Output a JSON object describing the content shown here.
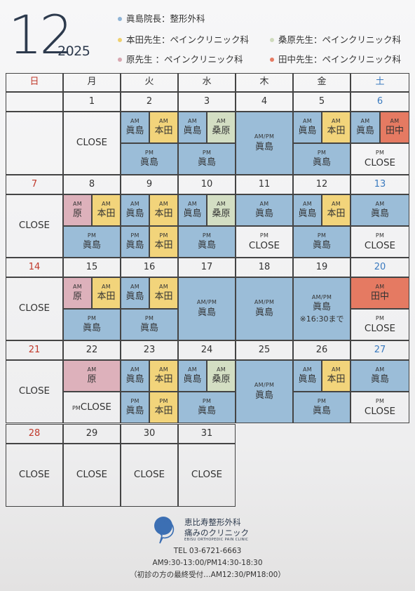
{
  "header": {
    "month": "12",
    "year": "2025"
  },
  "legend": [
    {
      "label": "眞島院長：整形外科",
      "color": "#8fb4d6"
    },
    {
      "label": "本田先生：ペインクリニック科",
      "color": "#efd06f"
    },
    {
      "label": "桑原先生：ペインクリニック科",
      "color": "#cfdbbd"
    },
    {
      "label": "原先生 ：ペインクリニック科",
      "color": "#d8a7b1"
    },
    {
      "label": "田中先生：ペインクリニック科",
      "color": "#e57a62"
    }
  ],
  "colors": {
    "majima": "#9bbdd8",
    "honda": "#f2d47b",
    "kuwahara": "#d3dec3",
    "hara": "#ddb1bb",
    "tanaka": "#e57a62",
    "sunday": "#c0392b",
    "saturday": "#3a7abf",
    "grid": "#444444"
  },
  "weekdays": [
    {
      "label": "日",
      "color": "#c0392b"
    },
    {
      "label": "月",
      "color": "#333333"
    },
    {
      "label": "火",
      "color": "#333333"
    },
    {
      "label": "水",
      "color": "#333333"
    },
    {
      "label": "木",
      "color": "#333333"
    },
    {
      "label": "金",
      "color": "#333333"
    },
    {
      "label": "土",
      "color": "#3a7abf"
    }
  ],
  "weeks": [
    {
      "dates": [
        "",
        "1",
        "2",
        "3",
        "4",
        "5",
        "6"
      ],
      "days": [
        {
          "kind": "empty"
        },
        {
          "kind": "full",
          "text": "CLOSE"
        },
        {
          "kind": "split",
          "am": [
            {
              "doc": "眞島",
              "c": "majima"
            },
            {
              "doc": "本田",
              "c": "honda"
            }
          ],
          "pm": [
            {
              "doc": "眞島",
              "c": "majima"
            }
          ]
        },
        {
          "kind": "split",
          "am": [
            {
              "doc": "眞島",
              "c": "majima"
            },
            {
              "doc": "桑原",
              "c": "kuwahara"
            }
          ],
          "pm": [
            {
              "doc": "眞島",
              "c": "majima"
            }
          ]
        },
        {
          "kind": "full",
          "tag": "AM/PM",
          "doc": "眞島",
          "c": "majima"
        },
        {
          "kind": "split",
          "am": [
            {
              "doc": "眞島",
              "c": "majima"
            },
            {
              "doc": "本田",
              "c": "honda"
            }
          ],
          "pm": [
            {
              "doc": "眞島",
              "c": "majima"
            }
          ]
        },
        {
          "kind": "split",
          "am": [
            {
              "doc": "眞島",
              "c": "majima"
            },
            {
              "doc": "田中",
              "c": "tanaka"
            }
          ],
          "pm": [
            {
              "doc": "CLOSE",
              "c": ""
            }
          ]
        }
      ]
    },
    {
      "dates": [
        "7",
        "8",
        "9",
        "10",
        "11",
        "12",
        "13"
      ],
      "days": [
        {
          "kind": "full",
          "text": "CLOSE"
        },
        {
          "kind": "split",
          "am": [
            {
              "doc": "原",
              "c": "hara"
            },
            {
              "doc": "本田",
              "c": "honda"
            }
          ],
          "pm": [
            {
              "doc": "眞島",
              "c": "majima"
            }
          ]
        },
        {
          "kind": "split",
          "am": [
            {
              "doc": "眞島",
              "c": "majima"
            },
            {
              "doc": "本田",
              "c": "honda"
            }
          ],
          "pm": [
            {
              "doc": "眞島",
              "c": "majima"
            },
            {
              "doc": "本田",
              "c": "honda"
            }
          ]
        },
        {
          "kind": "split",
          "am": [
            {
              "doc": "眞島",
              "c": "majima"
            },
            {
              "doc": "桑原",
              "c": "kuwahara"
            }
          ],
          "pm": [
            {
              "doc": "眞島",
              "c": "majima"
            }
          ]
        },
        {
          "kind": "split",
          "am": [
            {
              "doc": "眞島",
              "c": "majima"
            }
          ],
          "pm": [
            {
              "doc": "CLOSE",
              "c": ""
            }
          ]
        },
        {
          "kind": "split",
          "am": [
            {
              "doc": "眞島",
              "c": "majima"
            },
            {
              "doc": "本田",
              "c": "honda"
            }
          ],
          "pm": [
            {
              "doc": "眞島",
              "c": "majima"
            }
          ]
        },
        {
          "kind": "split",
          "am": [
            {
              "doc": "眞島",
              "c": "majima"
            }
          ],
          "pm": [
            {
              "doc": "CLOSE",
              "c": ""
            }
          ]
        }
      ]
    },
    {
      "dates": [
        "14",
        "15",
        "16",
        "17",
        "18",
        "19",
        "20"
      ],
      "days": [
        {
          "kind": "full",
          "text": "CLOSE"
        },
        {
          "kind": "split",
          "am": [
            {
              "doc": "原",
              "c": "hara"
            },
            {
              "doc": "本田",
              "c": "honda"
            }
          ],
          "pm": [
            {
              "doc": "眞島",
              "c": "majima"
            }
          ]
        },
        {
          "kind": "split",
          "am": [
            {
              "doc": "眞島",
              "c": "majima"
            },
            {
              "doc": "本田",
              "c": "honda"
            }
          ],
          "pm": [
            {
              "doc": "眞島",
              "c": "majima"
            }
          ]
        },
        {
          "kind": "full",
          "tag": "AM/PM",
          "doc": "眞島",
          "c": "majima"
        },
        {
          "kind": "full",
          "tag": "AM/PM",
          "doc": "眞島",
          "c": "majima"
        },
        {
          "kind": "full",
          "tag": "AM/PM",
          "doc": "眞島",
          "note": "※16:30まで",
          "c": "majima"
        },
        {
          "kind": "split",
          "am": [
            {
              "doc": "田中",
              "c": "tanaka"
            }
          ],
          "pm": [
            {
              "doc": "CLOSE",
              "c": ""
            }
          ]
        }
      ]
    },
    {
      "dates": [
        "21",
        "22",
        "23",
        "24",
        "25",
        "26",
        "27"
      ],
      "days": [
        {
          "kind": "full",
          "text": "CLOSE"
        },
        {
          "kind": "split",
          "am": [
            {
              "doc": "原",
              "c": "hara"
            }
          ],
          "pm": [
            {
              "doc": "CLOSE",
              "c": "",
              "inline": "PM"
            }
          ]
        },
        {
          "kind": "split",
          "am": [
            {
              "doc": "眞島",
              "c": "majima"
            },
            {
              "doc": "本田",
              "c": "honda"
            }
          ],
          "pm": [
            {
              "doc": "眞島",
              "c": "majima"
            },
            {
              "doc": "本田",
              "c": "honda"
            }
          ]
        },
        {
          "kind": "split",
          "am": [
            {
              "doc": "眞島",
              "c": "majima"
            },
            {
              "doc": "桑原",
              "c": "kuwahara"
            }
          ],
          "pm": [
            {
              "doc": "眞島",
              "c": "majima"
            }
          ]
        },
        {
          "kind": "full",
          "tag": "AM/PM",
          "doc": "眞島",
          "c": "majima"
        },
        {
          "kind": "split",
          "am": [
            {
              "doc": "眞島",
              "c": "majima"
            },
            {
              "doc": "本田",
              "c": "honda"
            }
          ],
          "pm": [
            {
              "doc": "眞島",
              "c": "majima"
            }
          ]
        },
        {
          "kind": "split",
          "am": [
            {
              "doc": "眞島",
              "c": "majima"
            }
          ],
          "pm": [
            {
              "doc": "CLOSE",
              "c": ""
            }
          ]
        }
      ]
    },
    {
      "dates": [
        "28",
        "29",
        "30",
        "31",
        "",
        "",
        ""
      ],
      "days": [
        {
          "kind": "full",
          "text": "CLOSE"
        },
        {
          "kind": "full",
          "text": "CLOSE"
        },
        {
          "kind": "full",
          "text": "CLOSE"
        },
        {
          "kind": "full",
          "text": "CLOSE"
        },
        {
          "kind": "none"
        },
        {
          "kind": "none"
        },
        {
          "kind": "none"
        }
      ]
    }
  ],
  "labels": {
    "am": "AM",
    "pm": "PM"
  },
  "clinic": {
    "name_line1": "恵比寿整形外科",
    "name_line2": "痛みのクリニック",
    "name_en": "EBISU ORTHOPEDIC PAIN CLINIC",
    "tel": "TEL 03-6721-6663",
    "hours": "AM9:30-13:00/PM14:30-18:30",
    "note": "（初診の方の最終受付…AM12:30/PM18:00）"
  }
}
